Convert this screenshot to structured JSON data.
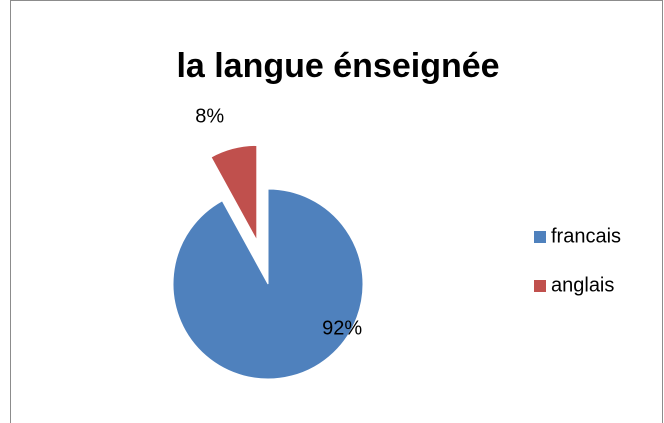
{
  "chart_data": {
    "type": "pie",
    "title": "la langue énseignée",
    "categories": [
      "francais",
      "anglais"
    ],
    "values": [
      92,
      8
    ],
    "value_labels": [
      "92%",
      "8%"
    ],
    "colors": [
      "#4f81bd",
      "#c0504d"
    ],
    "legend": "right"
  }
}
